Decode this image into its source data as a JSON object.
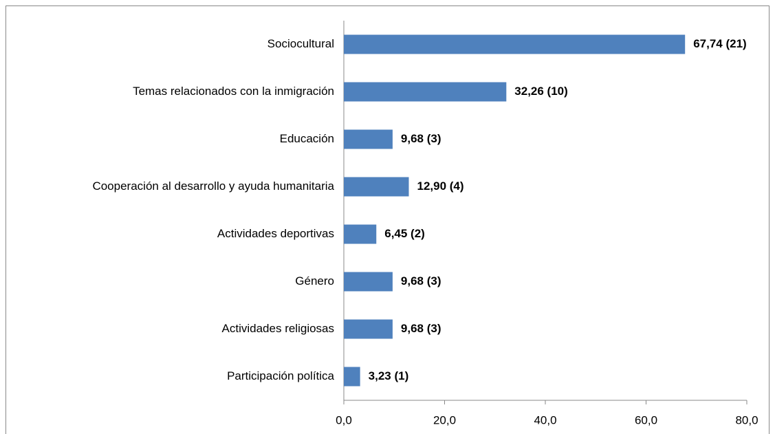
{
  "chart_data": {
    "type": "bar",
    "orientation": "horizontal",
    "categories": [
      "Sociocultural",
      "Temas relacionados con la inmigración",
      "Educación",
      "Cooperación al desarrollo y ayuda humanitaria",
      "Actividades deportivas",
      "Género",
      "Actividades religiosas",
      "Participación política"
    ],
    "values": [
      67.74,
      32.26,
      9.68,
      12.9,
      6.45,
      9.68,
      9.68,
      3.23
    ],
    "value_labels": [
      "67,74 (21)",
      "32,26 (10)",
      "9,68 (3)",
      "12,90 (4)",
      "6,45 (2)",
      "9,68 (3)",
      "9,68 (3)",
      "3,23 (1)"
    ],
    "color": "#4f81bd",
    "xlim": [
      0,
      80
    ],
    "xticks": [
      {
        "value": 0,
        "label": "0,0"
      },
      {
        "value": 20,
        "label": "20,0"
      },
      {
        "value": 40,
        "label": "40,0"
      },
      {
        "value": 60,
        "label": "60,0"
      },
      {
        "value": 80,
        "label": "80,0"
      }
    ],
    "grid": false
  }
}
